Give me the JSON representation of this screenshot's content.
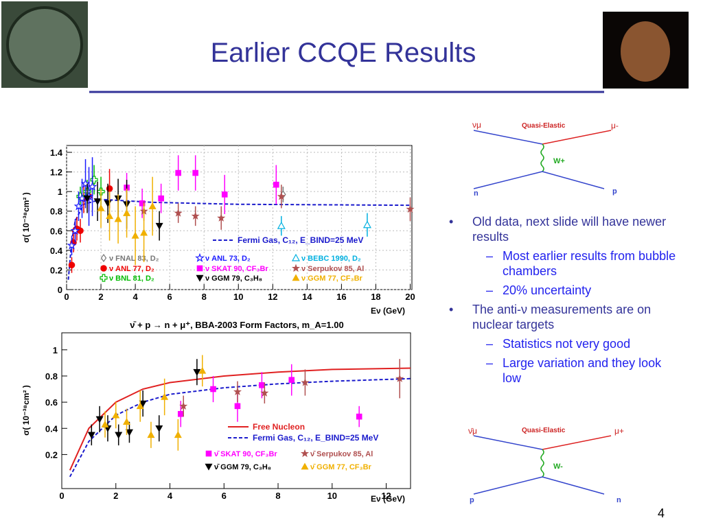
{
  "title": "Earlier CCQE Results",
  "page_number": "4",
  "bullets": [
    {
      "level": 1,
      "text": "Old data, next slide will have newer results"
    },
    {
      "level": 2,
      "text": "Most earlier results from bubble chambers"
    },
    {
      "level": 2,
      "text": " 20% uncertainty"
    },
    {
      "level": 1,
      "text": "The anti-ν measurements are on nuclear targets"
    },
    {
      "level": 2,
      "text": "Statistics not very good"
    },
    {
      "level": 2,
      "text": "Large variation and they look low"
    }
  ],
  "diagrams": [
    {
      "label": "Quasi-Elastic",
      "incoming": "νμ",
      "outgoing": "μ-",
      "boson": "W+",
      "target": "n",
      "product": "p"
    },
    {
      "label": "Quasi-Elastic",
      "incoming": "ν̄μ",
      "outgoing": "μ+",
      "boson": "W-",
      "target": "p",
      "product": "n"
    }
  ],
  "chart_data": [
    {
      "type": "scatter",
      "y_label": "σ( 10⁻³⁸cm² )",
      "x_label": "Eν (GeV)",
      "xlim": [
        0,
        20.1
      ],
      "ylim": [
        0,
        1.47
      ],
      "xticks": [
        0,
        2,
        4,
        6,
        8,
        10,
        12,
        14,
        16,
        18,
        20
      ],
      "yticks": [
        0,
        0.2,
        0.4,
        0.6,
        0.8,
        1,
        1.2,
        1.4
      ],
      "grid": true,
      "lines": [
        {
          "name": "Fermi Gas, C₁₂, E_BIND=25 MeV",
          "color": "#1a1acc",
          "dash": true,
          "x": [
            0.1,
            0.3,
            0.5,
            1,
            2,
            3,
            5,
            10,
            20
          ],
          "y": [
            0.1,
            0.5,
            0.7,
            0.87,
            0.92,
            0.91,
            0.89,
            0.87,
            0.86
          ]
        }
      ],
      "series": [
        {
          "name": "ν FNAL 83, D₂",
          "color": "#777777",
          "marker": "diamond-open",
          "x": [
            12.6
          ],
          "values": [
            0.97
          ],
          "errors": [
            0.08
          ]
        },
        {
          "name": "ν ANL 77, D₂",
          "color": "#ee0000",
          "marker": "circle",
          "x": [
            0.3,
            0.4,
            0.5,
            0.6,
            0.8,
            1.0,
            1.3,
            2.5
          ],
          "values": [
            0.25,
            0.48,
            0.6,
            0.62,
            0.6,
            0.93,
            0.95,
            1.03
          ],
          "errors": [
            0.08,
            0.1,
            0.1,
            0.12,
            0.12,
            0.15,
            0.15,
            0.2
          ]
        },
        {
          "name": "ν BNL 81, D₂",
          "color": "#00bb00",
          "marker": "cross-open",
          "x": [
            0.8,
            1.2,
            1.6,
            2.0
          ],
          "values": [
            0.95,
            1.0,
            1.12,
            1.0
          ],
          "errors": [
            0.1,
            0.12,
            0.15,
            0.15
          ]
        },
        {
          "name": "ν ANL 73, D₂",
          "color": "#1a1aff",
          "marker": "star-open",
          "x": [
            0.3,
            0.5,
            0.7,
            0.9,
            1.1,
            1.3,
            1.5
          ],
          "values": [
            0.45,
            0.6,
            0.85,
            0.93,
            1.08,
            0.95,
            1.05
          ],
          "errors": [
            0.1,
            0.12,
            0.15,
            0.2,
            0.25,
            0.3,
            0.3
          ]
        },
        {
          "name": "ν SKAT 90, CF₃Br",
          "color": "#ff00ff",
          "marker": "square",
          "x": [
            3.5,
            4.4,
            5.5,
            6.5,
            7.5,
            9.2,
            12.2
          ],
          "values": [
            1.04,
            0.88,
            0.93,
            1.19,
            1.19,
            0.97,
            1.07
          ],
          "errors": [
            0.15,
            0.15,
            0.15,
            0.18,
            0.18,
            0.2,
            0.2
          ]
        },
        {
          "name": "ν GGM 79, C₃H₈",
          "color": "#000000",
          "marker": "triangle-down",
          "x": [
            1.2,
            1.8,
            2.4,
            3.0,
            3.5,
            5.4
          ],
          "values": [
            0.93,
            0.9,
            0.88,
            0.93,
            0.87,
            0.65
          ],
          "errors": [
            0.15,
            0.2,
            0.2,
            0.2,
            0.25,
            0.15
          ]
        },
        {
          "name": "ν BEBC 1990, D₂",
          "color": "#00b0e0",
          "marker": "triangle-open",
          "x": [
            12.5,
            17.5
          ],
          "values": [
            0.65,
            0.66
          ],
          "errors": [
            0.1,
            0.12
          ]
        },
        {
          "name": "ν Serpukov 85, Al",
          "color": "#b05050",
          "marker": "star",
          "x": [
            4.5,
            6.5,
            7.5,
            9.0,
            12.5,
            20
          ],
          "values": [
            0.8,
            0.78,
            0.75,
            0.73,
            0.95,
            0.82
          ],
          "errors": [
            0.1,
            0.1,
            0.1,
            0.12,
            0.12,
            0.12
          ]
        },
        {
          "name": "ν GGM 77, CF₃Br",
          "color": "#f0b000",
          "marker": "triangle-up",
          "x": [
            2.0,
            2.5,
            3.0,
            3.5,
            4.0,
            4.5,
            5.0
          ],
          "values": [
            0.83,
            0.75,
            0.72,
            0.78,
            0.55,
            0.58,
            0.85
          ],
          "errors": [
            0.2,
            0.25,
            0.25,
            0.25,
            0.3,
            0.3,
            0.3
          ]
        }
      ]
    },
    {
      "type": "scatter",
      "title": "ν̄ + p → n + μ⁺, BBA-2003 Form Factors, m_A=1.00",
      "y_label": "σ( 10⁻³⁸cm² )",
      "x_label": "Eν (GeV)",
      "xlim": [
        0,
        12.9
      ],
      "ylim": [
        -0.06,
        1.13
      ],
      "xticks": [
        0,
        2,
        4,
        6,
        8,
        10,
        12
      ],
      "yticks": [
        0.2,
        0.4,
        0.6,
        0.8,
        1
      ],
      "grid": false,
      "lines": [
        {
          "name": "Free Nucleon",
          "color": "#e02020",
          "dash": false,
          "x": [
            0.3,
            1,
            2,
            3,
            4,
            6,
            8,
            10,
            12.9
          ],
          "y": [
            0.08,
            0.4,
            0.6,
            0.7,
            0.75,
            0.8,
            0.83,
            0.85,
            0.86
          ]
        },
        {
          "name": "Fermi Gas, C₁₂, E_BIND=25 MeV",
          "color": "#1a1acc",
          "dash": true,
          "x": [
            0.3,
            1,
            2,
            3,
            4,
            6,
            8,
            10,
            12.9
          ],
          "y": [
            0.03,
            0.3,
            0.5,
            0.6,
            0.66,
            0.71,
            0.74,
            0.76,
            0.78
          ]
        }
      ],
      "series": [
        {
          "name": "ν̄ SKAT 90, CF₃Br",
          "color": "#ff00ff",
          "marker": "square",
          "x": [
            4.4,
            5.6,
            6.5,
            7.4,
            8.5,
            11
          ],
          "values": [
            0.51,
            0.7,
            0.57,
            0.73,
            0.77,
            0.49
          ],
          "errors": [
            0.1,
            0.1,
            0.12,
            0.1,
            0.12,
            0.08
          ]
        },
        {
          "name": "ν̄ Serpukov 85, Al",
          "color": "#b05050",
          "marker": "star",
          "x": [
            4.5,
            6.5,
            7.5,
            9,
            12.5
          ],
          "values": [
            0.57,
            0.68,
            0.67,
            0.75,
            0.78
          ],
          "errors": [
            0.08,
            0.08,
            0.08,
            0.1,
            0.15
          ]
        },
        {
          "name": "ν̄ GGM 79, C₃H₈",
          "color": "#000000",
          "marker": "triangle-down",
          "x": [
            1.1,
            1.4,
            1.7,
            2.1,
            2.5,
            3.0,
            3.6,
            5.0
          ],
          "values": [
            0.35,
            0.47,
            0.4,
            0.35,
            0.37,
            0.59,
            0.4,
            0.83
          ],
          "errors": [
            0.08,
            0.1,
            0.1,
            0.08,
            0.08,
            0.1,
            0.1,
            0.1
          ]
        },
        {
          "name": "ν̄ GGM 77, CF₃Br",
          "color": "#f0b000",
          "marker": "triangle-up",
          "x": [
            1.6,
            2.0,
            2.4,
            2.9,
            3.3,
            3.8,
            4.3,
            5.2
          ],
          "values": [
            0.43,
            0.5,
            0.45,
            0.57,
            0.35,
            0.64,
            0.35,
            0.84
          ],
          "errors": [
            0.1,
            0.1,
            0.1,
            0.12,
            0.1,
            0.14,
            0.12,
            0.12
          ]
        }
      ]
    }
  ]
}
